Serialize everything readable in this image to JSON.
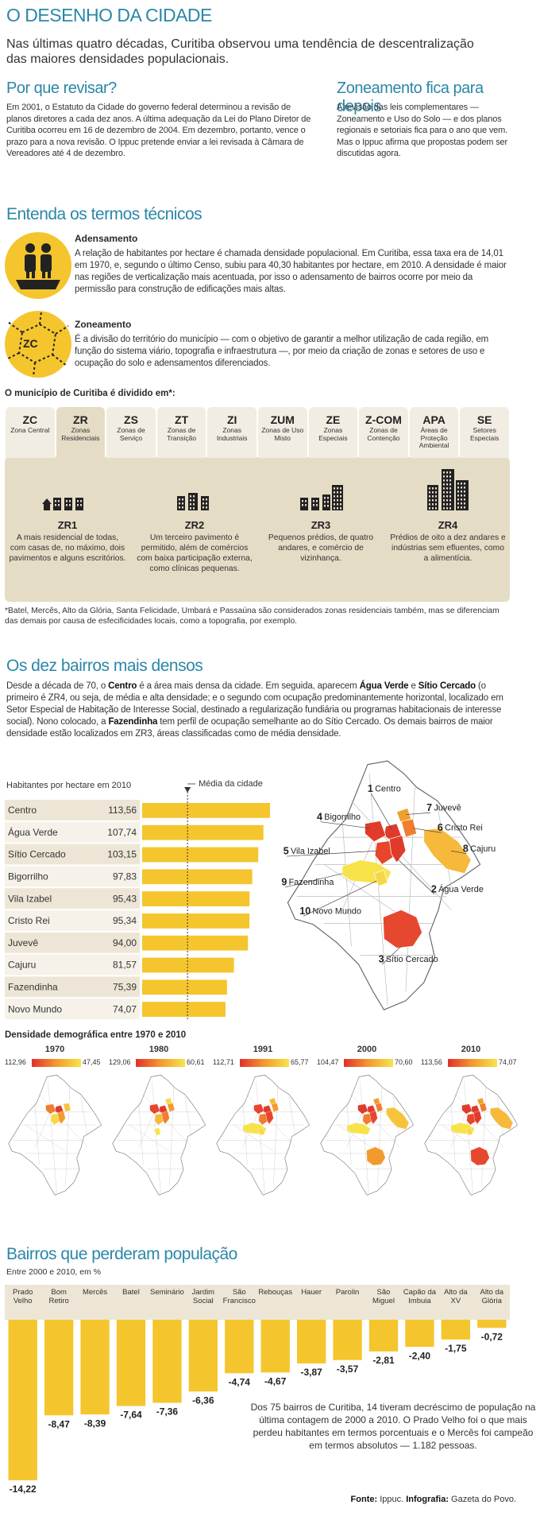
{
  "header": {
    "title": "O DESENHO DA CIDADE",
    "subtitle": "Nas últimas quatro décadas, Curitiba observou uma tendência de descentralização das maiores densidades populacionais."
  },
  "columns": [
    {
      "heading": "Por que revisar?",
      "text": "Em 2001, o Estatuto da Cidade do governo federal determinou a revisão de planos diretores a cada dez anos. A última adequação da Lei do Plano Diretor de Curitiba ocorreu em 16 de dezembro de 2004. Em dezembro, portanto, vence o prazo para a nova revisão. O Ippuc pretende enviar a lei revisada à Câmara de Vereadores até 4 de dezembro."
    },
    {
      "heading": "Zoneamento fica para depois",
      "text": "A revisão das leis complementares — Zoneamento e Uso do Solo — e dos planos regionais e setoriais fica para o ano que vem. Mas o Ippuc afirma que propostas podem ser discutidas agora."
    }
  ],
  "terms": {
    "heading": "Entenda os termos técnicos",
    "items": [
      {
        "title": "Adensamento",
        "text": "A relação de habitantes por hectare é chamada densidade populacional. Em Curitiba, essa taxa era de 14,01 em 1970, e, segundo o último Censo, subiu para 40,30 habitantes por hectare, em 2010. A densidade é maior nas regiões de verticalização mais acentuada, por isso o adensamento de bairros ocorre por meio da permissão para construção de edificações mais altas."
      },
      {
        "title": "Zoneamento",
        "text": "É a divisão do território do município — com o objetivo de garantir a melhor utilização de cada região, em função do sistema viário, topografia e infraestrutura —, por meio da criação de zonas e setores de uso e ocupação do solo e adensamentos diferenciados."
      }
    ]
  },
  "zones": {
    "heading": "O município de Curitiba é dividido em*:",
    "selected": 1,
    "tabs": [
      {
        "code": "ZC",
        "name": "Zona Central"
      },
      {
        "code": "ZR",
        "name": "Zonas Residenciais"
      },
      {
        "code": "ZS",
        "name": "Zonas de Serviço"
      },
      {
        "code": "ZT",
        "name": "Zonas de Transição"
      },
      {
        "code": "ZI",
        "name": "Zonas Industriais"
      },
      {
        "code": "ZUM",
        "name": "Zonas de Uso Misto"
      },
      {
        "code": "ZE",
        "name": "Zonas Especiais"
      },
      {
        "code": "Z-COM",
        "name": "Zonas de Contenção"
      },
      {
        "code": "APA",
        "name": "Áreas de Proteção Ambiental"
      },
      {
        "code": "SE",
        "name": "Setores Especiais"
      }
    ],
    "details": [
      {
        "code": "ZR1",
        "text": "A mais residencial de todas, com casas de, no máximo, dois pavimentos e alguns escritórios."
      },
      {
        "code": "ZR2",
        "text": "Um terceiro pavimento é permitido, além de comércios com baixa participação externa, como clínicas pequenas."
      },
      {
        "code": "ZR3",
        "text": "Pequenos prédios, de quatro andares, e comércio de vizinhança."
      },
      {
        "code": "ZR4",
        "text": "Prédios de oito a dez andares e indústrias sem efluentes, como a alimentícia."
      }
    ],
    "footnote": "*Batel, Mercês, Alto da Glória, Santa Felicidade, Umbará e Passaúna são considerados zonas residenciais também, mas se diferenciam das demais por causa de esfecificidades locais, como a topografia, por exemplo."
  },
  "dense": {
    "heading": "Os dez bairros mais densos",
    "paragraph": [
      "Desde a década de 70, o ",
      "Centro",
      " é a área mais densa da cidade. Em seguida, aparecem ",
      "Água Verde",
      " e ",
      "Sítio Cercado",
      " (o primeiro é ZR4, ou seja, de média e alta densidade; e o segundo com ocupação predominantemente horizontal, localizado em Setor Especial de Habitação de Interesse Social, destinado a regularização fundiária ou programas habitacionais de interesse social). Nono colocado, a ",
      "Fazendinha",
      " tem perfil de ocupação semelhante ao do Sítio Cercado. Os demais bairros de maior densidade estão localizados em ZR3, áreas classificadas como de média densidade."
    ],
    "map_labels": [
      {
        "rank": "1",
        "name": "Centro"
      },
      {
        "rank": "2",
        "name": "Água Verde"
      },
      {
        "rank": "3",
        "name": "Sítio Cercado"
      },
      {
        "rank": "4",
        "name": "Bigorrilho"
      },
      {
        "rank": "5",
        "name": "Vila Izabel"
      },
      {
        "rank": "6",
        "name": "Cristo Rei"
      },
      {
        "rank": "7",
        "name": "Juvevê"
      },
      {
        "rank": "8",
        "name": "Cajuru"
      },
      {
        "rank": "9",
        "name": "Fazendinha"
      },
      {
        "rank": "10",
        "name": "Novo Mundo"
      }
    ]
  },
  "density_maps": {
    "title": "Densidade demográfica entre 1970 e 2010",
    "years": [
      {
        "year": "1970",
        "max": "112,96",
        "min": "47,45"
      },
      {
        "year": "1980",
        "max": "129,06",
        "min": "60,61"
      },
      {
        "year": "1991",
        "max": "112,71",
        "min": "65,77"
      },
      {
        "year": "2000",
        "max": "104,47",
        "min": "70,60"
      },
      {
        "year": "2010",
        "max": "113,56",
        "min": "74,07"
      }
    ]
  },
  "chart_data": [
    {
      "type": "bar",
      "orientation": "horizontal",
      "title": "Habitantes por hectare em 2010",
      "color": "#f5c52e",
      "categories": [
        "Centro",
        "Água Verde",
        "Sítio Cercado",
        "Bigorrilho",
        "Vila Izabel",
        "Cristo Rei",
        "Juvevê",
        "Cajuru",
        "Fazendinha",
        "Novo Mundo"
      ],
      "values": [
        113.56,
        107.74,
        103.15,
        97.83,
        95.43,
        95.34,
        94.0,
        81.57,
        75.39,
        74.07
      ],
      "value_labels": [
        "113,56",
        "107,74",
        "103,15",
        "97,83",
        "95,43",
        "95,34",
        "94,00",
        "81,57",
        "75,39",
        "74,07"
      ],
      "xlim": [
        0,
        115
      ],
      "reference_line": {
        "value": 40.3,
        "label": "Média da cidade"
      }
    },
    {
      "type": "bar",
      "orientation": "vertical",
      "title": "Bairros que perderam população",
      "subtitle": "Entre 2000 e 2010, em %",
      "color": "#f5c52e",
      "categories": [
        "Prado Velho",
        "Bom Retiro",
        "Mercês",
        "Batel",
        "Seminário",
        "Jardim Social",
        "São Francisco",
        "Rebouças",
        "Hauer",
        "Parolin",
        "São Miguel",
        "Capão da Imbuia",
        "Alto da XV",
        "Alto da Glória"
      ],
      "values": [
        -14.22,
        -8.47,
        -8.39,
        -7.64,
        -7.36,
        -6.36,
        -4.74,
        -4.67,
        -3.87,
        -3.57,
        -2.81,
        -2.4,
        -1.75,
        -0.72
      ],
      "value_labels": [
        "-14,22",
        "-8,47",
        "-8,39",
        "-7,64",
        "-7,36",
        "-6,36",
        "-4,74",
        "-4,67",
        "-3,87",
        "-3,57",
        "-2,81",
        "-2,40",
        "-1,75",
        "-0,72"
      ],
      "ylim": [
        -15,
        0
      ],
      "annotation": "Dos 75 bairros de Curitiba, 14 tiveram decréscimo de população na última contagem de 2000 a 2010. O Prado Velho foi o que mais perdeu habitantes em termos porcentuais e o Mercês foi campeão em termos absolutos — 1.182 pessoas."
    }
  ],
  "source": [
    "Fonte:",
    " Ippuc. ",
    "Infografia:",
    " Gazeta do Povo."
  ]
}
